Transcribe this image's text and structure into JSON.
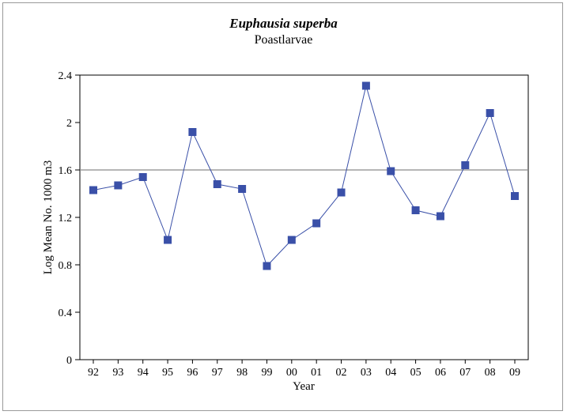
{
  "chart_data": {
    "type": "line",
    "title": "Euphausia superba",
    "subtitle": "Poastlarvae",
    "xlabel": "Year",
    "ylabel": "Log Mean No. 1000 m3",
    "categories": [
      "92",
      "93",
      "94",
      "95",
      "96",
      "97",
      "98",
      "99",
      "00",
      "01",
      "02",
      "03",
      "04",
      "05",
      "06",
      "07",
      "08",
      "09"
    ],
    "series": [
      {
        "values": [
          1.43,
          1.47,
          1.54,
          1.01,
          1.92,
          1.48,
          1.44,
          0.79,
          1.01,
          1.15,
          1.41,
          2.31,
          1.59,
          1.26,
          1.21,
          1.64,
          2.08,
          1.38
        ],
        "color": "#3a50a8"
      }
    ],
    "reference_line": 1.6,
    "ylim": [
      0,
      2.4
    ],
    "yticks": [
      "0",
      "0.4",
      "0.8",
      "1.2",
      "1.6",
      "2",
      "2.4"
    ],
    "grid": false,
    "legend": "none"
  }
}
